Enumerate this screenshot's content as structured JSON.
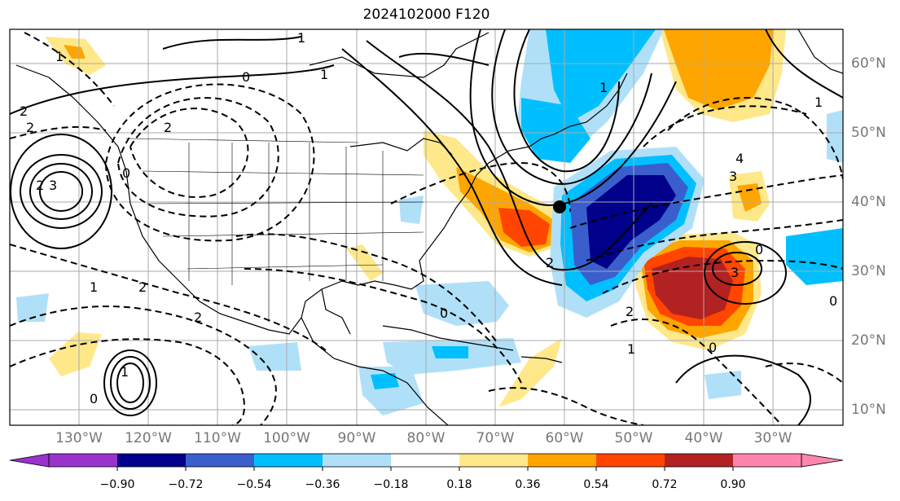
{
  "title": "2024102000 F120",
  "longitude_labels": [
    "130°W",
    "120°W",
    "110°W",
    "100°W",
    "90°W",
    "80°W",
    "70°W",
    "60°W",
    "50°W",
    "40°W",
    "30°W"
  ],
  "latitude_labels": [
    "60°N",
    "50°N",
    "40°N",
    "30°N",
    "20°N",
    "10°N"
  ],
  "colorbar": {
    "ticks": [
      "−0.90",
      "−0.72",
      "−0.54",
      "−0.36",
      "−0.18",
      "0.18",
      "0.36",
      "0.54",
      "0.72",
      "0.90"
    ],
    "colors": [
      "#9933cc",
      "#00008b",
      "#3a5fcd",
      "#00bfff",
      "#b0e0f8",
      "#ffffff",
      "#ffe88a",
      "#ffa500",
      "#ff4500",
      "#b22222",
      "#ff85b0"
    ]
  },
  "contour_labels": [
    "1",
    "0",
    "1",
    "2",
    "2",
    "2",
    "0",
    "2",
    "3",
    "1",
    "2",
    "1",
    "0",
    "2",
    "3",
    "4",
    "3",
    "2",
    "1",
    "0",
    "1",
    "1",
    "2",
    "0",
    "0",
    "0",
    "1"
  ],
  "marker": "storm-position-dot"
}
